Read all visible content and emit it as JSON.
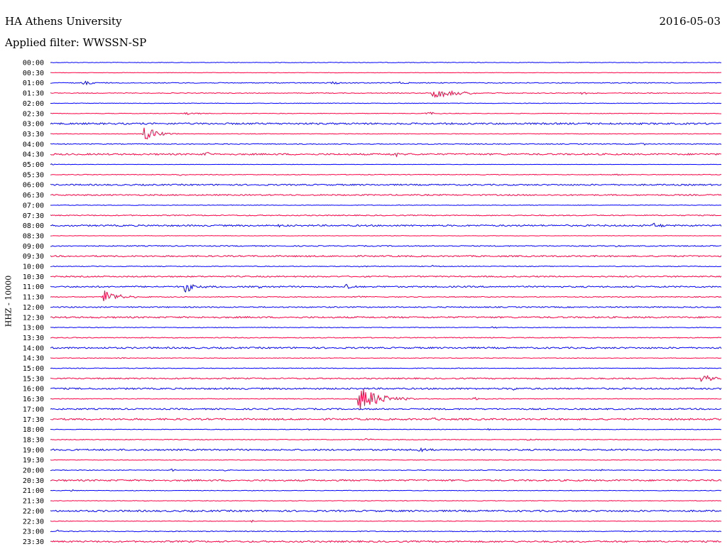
{
  "header": {
    "station": "HA Athens University",
    "filter": "Applied filter: WWSSN-SP",
    "date": "2016-05-03"
  },
  "colors": {
    "even_hour_trace": "#0000ff",
    "half_hour_trace": "#ff0044",
    "background": "#ffffff",
    "text": "#000000"
  },
  "chart_data": {
    "type": "line",
    "title": "HA Athens University",
    "subtitle": "Applied filter: WWSSN-SP",
    "date": "2016-05-03",
    "ylabel": "HHZ - 10000",
    "xlabel": "",
    "grid": false,
    "legend": "none",
    "row_duration_minutes": 30,
    "rows": [
      {
        "label": "00:00",
        "events": [],
        "noise": 0.4
      },
      {
        "label": "00:30",
        "events": [],
        "noise": 0.3
      },
      {
        "label": "01:00",
        "events": [
          {
            "t": 0.05,
            "amp": 3,
            "dur": 0.03
          },
          {
            "t": 0.42,
            "amp": 2,
            "dur": 0.02
          },
          {
            "t": 0.52,
            "amp": 2,
            "dur": 0.02
          }
        ],
        "noise": 0.6
      },
      {
        "label": "01:30",
        "events": [
          {
            "t": 0.57,
            "amp": 7,
            "dur": 0.06
          },
          {
            "t": 0.79,
            "amp": 1.5,
            "dur": 0.04
          }
        ],
        "noise": 0.5
      },
      {
        "label": "02:00",
        "events": [],
        "noise": 0.4
      },
      {
        "label": "02:30",
        "events": [
          {
            "t": 0.2,
            "amp": 1.5,
            "dur": 0.05
          },
          {
            "t": 0.56,
            "amp": 2.5,
            "dur": 0.02
          }
        ],
        "noise": 0.4
      },
      {
        "label": "03:00",
        "events": [],
        "noise": 1.2
      },
      {
        "label": "03:30",
        "events": [
          {
            "t": 0.14,
            "amp": 14,
            "dur": 0.025
          }
        ],
        "noise": 0.4
      },
      {
        "label": "04:00",
        "events": [
          {
            "t": 0.88,
            "amp": 2.5,
            "dur": 0.01
          }
        ],
        "noise": 0.6
      },
      {
        "label": "04:30",
        "events": [
          {
            "t": 0.23,
            "amp": 4,
            "dur": 0.015
          },
          {
            "t": 0.51,
            "amp": 4,
            "dur": 0.015
          }
        ],
        "noise": 1.1
      },
      {
        "label": "05:00",
        "events": [
          {
            "t": 0.0,
            "amp": 2,
            "dur": 0.01
          }
        ],
        "noise": 0.3
      },
      {
        "label": "05:30",
        "events": [
          {
            "t": 0.19,
            "amp": 1.5,
            "dur": 0.02
          },
          {
            "t": 0.84,
            "amp": 1.5,
            "dur": 0.03
          }
        ],
        "noise": 0.5
      },
      {
        "label": "06:00",
        "events": [],
        "noise": 1.0
      },
      {
        "label": "06:30",
        "events": [],
        "noise": 0.9
      },
      {
        "label": "07:00",
        "events": [],
        "noise": 0.4
      },
      {
        "label": "07:30",
        "events": [],
        "noise": 0.7
      },
      {
        "label": "08:00",
        "events": [
          {
            "t": 0.34,
            "amp": 2,
            "dur": 0.01
          },
          {
            "t": 0.9,
            "amp": 4,
            "dur": 0.015
          }
        ],
        "noise": 1.1
      },
      {
        "label": "08:30",
        "events": [],
        "noise": 0.3
      },
      {
        "label": "09:00",
        "events": [
          {
            "t": 0.84,
            "amp": 1.5,
            "dur": 0.01
          }
        ],
        "noise": 0.7
      },
      {
        "label": "09:30",
        "events": [],
        "noise": 1.0
      },
      {
        "label": "10:00",
        "events": [
          {
            "t": 0.46,
            "amp": 2,
            "dur": 0.015
          },
          {
            "t": 0.57,
            "amp": 1.5,
            "dur": 0.01
          }
        ],
        "noise": 0.5
      },
      {
        "label": "10:30",
        "events": [],
        "noise": 0.9
      },
      {
        "label": "11:00",
        "events": [
          {
            "t": 0.2,
            "amp": 8,
            "dur": 0.03
          },
          {
            "t": 0.31,
            "amp": 2,
            "dur": 0.01
          },
          {
            "t": 0.44,
            "amp": 4,
            "dur": 0.015
          }
        ],
        "noise": 1.0
      },
      {
        "label": "11:30",
        "events": [
          {
            "t": 0.08,
            "amp": 11,
            "dur": 0.03
          },
          {
            "t": 0.46,
            "amp": 2,
            "dur": 0.01
          }
        ],
        "noise": 0.6
      },
      {
        "label": "12:00",
        "events": [],
        "noise": 0.8
      },
      {
        "label": "12:30",
        "events": [],
        "noise": 1.1
      },
      {
        "label": "13:00",
        "events": [
          {
            "t": 0.66,
            "amp": 2,
            "dur": 0.01
          },
          {
            "t": 0.89,
            "amp": 1.5,
            "dur": 0.01
          }
        ],
        "noise": 0.5
      },
      {
        "label": "13:30",
        "events": [],
        "noise": 0.6
      },
      {
        "label": "14:00",
        "events": [],
        "noise": 1.1
      },
      {
        "label": "14:30",
        "events": [
          {
            "t": 0.1,
            "amp": 2,
            "dur": 0.01
          }
        ],
        "noise": 0.4
      },
      {
        "label": "15:00",
        "events": [],
        "noise": 0.5
      },
      {
        "label": "15:30",
        "events": [
          {
            "t": 0.97,
            "amp": 7,
            "dur": 0.03
          }
        ],
        "noise": 0.9
      },
      {
        "label": "16:00",
        "events": [
          {
            "t": 0.69,
            "amp": 2,
            "dur": 0.01
          }
        ],
        "noise": 1.1
      },
      {
        "label": "16:30",
        "events": [
          {
            "t": 0.46,
            "amp": 20,
            "dur": 0.045
          },
          {
            "t": 0.63,
            "amp": 2.5,
            "dur": 0.02
          }
        ],
        "noise": 0.5
      },
      {
        "label": "17:00",
        "events": [],
        "noise": 1.0
      },
      {
        "label": "17:30",
        "events": [
          {
            "t": 0.57,
            "amp": 1.5,
            "dur": 0.01
          }
        ],
        "noise": 1.2
      },
      {
        "label": "18:00",
        "events": [
          {
            "t": 0.38,
            "amp": 2,
            "dur": 0.01
          },
          {
            "t": 0.65,
            "amp": 1.5,
            "dur": 0.01
          },
          {
            "t": 0.79,
            "amp": 1.5,
            "dur": 0.01
          }
        ],
        "noise": 0.4
      },
      {
        "label": "18:30",
        "events": [
          {
            "t": 0.47,
            "amp": 2,
            "dur": 0.015
          },
          {
            "t": 0.71,
            "amp": 1.5,
            "dur": 0.02
          }
        ],
        "noise": 0.5
      },
      {
        "label": "19:00",
        "events": [
          {
            "t": 0.55,
            "amp": 3,
            "dur": 0.015
          }
        ],
        "noise": 1.1
      },
      {
        "label": "19:30",
        "events": [],
        "noise": 0.4
      },
      {
        "label": "20:00",
        "events": [
          {
            "t": 0.18,
            "amp": 2,
            "dur": 0.01
          },
          {
            "t": 0.26,
            "amp": 1.5,
            "dur": 0.01
          },
          {
            "t": 0.82,
            "amp": 1.5,
            "dur": 0.01
          },
          {
            "t": 0.99,
            "amp": 1.5,
            "dur": 0.01
          }
        ],
        "noise": 0.5
      },
      {
        "label": "20:30",
        "events": [],
        "noise": 1.1
      },
      {
        "label": "21:00",
        "events": [
          {
            "t": 0.03,
            "amp": 2,
            "dur": 0.01
          }
        ],
        "noise": 0.4
      },
      {
        "label": "21:30",
        "events": [],
        "noise": 0.4
      },
      {
        "label": "22:00",
        "events": [],
        "noise": 1.2
      },
      {
        "label": "22:30",
        "events": [
          {
            "t": 0.3,
            "amp": 2,
            "dur": 0.015
          }
        ],
        "noise": 0.4
      },
      {
        "label": "23:00",
        "events": [
          {
            "t": 0.01,
            "amp": 2,
            "dur": 0.01
          }
        ],
        "noise": 0.6
      },
      {
        "label": "23:30",
        "events": [],
        "noise": 1.1
      }
    ]
  }
}
